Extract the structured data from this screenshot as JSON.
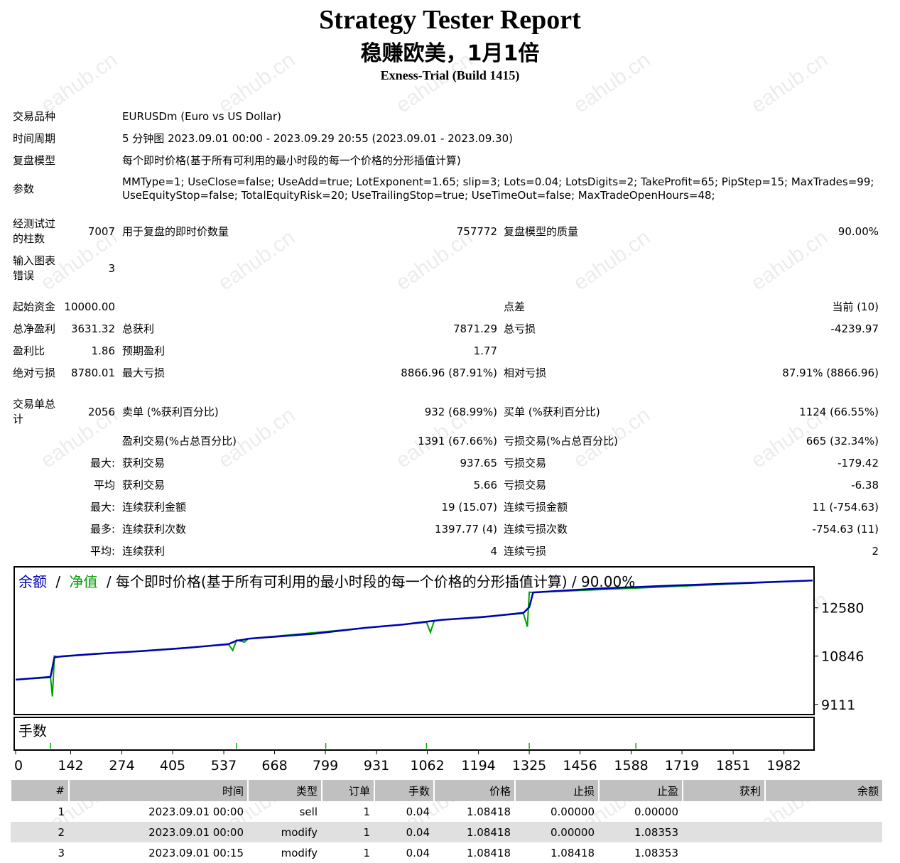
{
  "header": {
    "title": "Strategy Tester Report",
    "subtitle": "稳赚欧美，1月1倍",
    "server": "Exness-Trial (Build 1415)"
  },
  "watermark": "eahub.cn",
  "settings": {
    "symbol_label": "交易品种",
    "symbol_value": "EURUSDm (Euro vs US Dollar)",
    "period_label": "时间周期",
    "period_value": "5 分钟图 2023.09.01 00:00 - 2023.09.29 20:55 (2023.09.01 - 2023.09.30)",
    "model_label": "复盘模型",
    "model_value": "每个即时价格(基于所有可利用的最小时段的每一个价格的分形插值计算)",
    "params_label": "参数",
    "params_line1": "MMType=1; UseClose=false; UseAdd=true; LotExponent=1.65; slip=3; Lots=0.04; LotsDigits=2; TakeProfit=65; PipStep=15; MaxTrades=99;",
    "params_line2": "UseEquityStop=false; TotalEquityRisk=20; UseTrailingStop=true; UseTimeOut=false; MaxTradeOpenHours=48;"
  },
  "stats": {
    "bars_label_1": "经测试过",
    "bars_label_2": "的柱数",
    "bars_value": "7007",
    "ticks_label": "用于复盘的即时价数量",
    "ticks_value": "757772",
    "quality_label": "复盘模型的质量",
    "quality_value": "90.00%",
    "errors_label_1": "输入图表",
    "errors_label_2": "错误",
    "errors_value": "3",
    "deposit_label": "起始资金",
    "deposit_value": "10000.00",
    "spread_label": "点差",
    "spread_value": "当前 (10)",
    "net_profit_label": "总净盈利",
    "net_profit_value": "3631.32",
    "gross_profit_label": "总获利",
    "gross_profit_value": "7871.29",
    "gross_loss_label": "总亏损",
    "gross_loss_value": "-4239.97",
    "profit_factor_label": "盈利比",
    "profit_factor_value": "1.86",
    "expected_payoff_label": "预期盈利",
    "expected_payoff_value": "1.77",
    "abs_drawdown_label": "绝对亏损",
    "abs_drawdown_value": "8780.01",
    "max_drawdown_label": "最大亏损",
    "max_drawdown_value": "8866.96 (87.91%)",
    "rel_drawdown_label": "相对亏损",
    "rel_drawdown_value": "87.91% (8866.96)",
    "total_trades_label_1": "交易单总",
    "total_trades_label_2": "计",
    "total_trades_value": "2056",
    "short_label": "卖单 (%获利百分比)",
    "short_value": "932 (68.99%)",
    "long_label": "买单 (%获利百分比)",
    "long_value": "1124 (66.55%)",
    "profit_trades_label": "盈利交易(%占总百分比)",
    "profit_trades_value": "1391 (67.66%)",
    "loss_trades_label": "亏损交易(%占总百分比)",
    "loss_trades_value": "665 (32.34%)",
    "largest_prefix": "最大:",
    "largest_profit_label": "获利交易",
    "largest_profit_value": "937.65",
    "largest_loss_label": "亏损交易",
    "largest_loss_value": "-179.42",
    "average_prefix": "平均",
    "average_profit_label": "获利交易",
    "average_profit_value": "5.66",
    "average_loss_label": "亏损交易",
    "average_loss_value": "-6.38",
    "max_cons_prefix": "最大:",
    "max_cons_wins_label": "连续获利金额",
    "max_cons_wins_value": "19 (15.07)",
    "max_cons_losses_label": "连续亏损金额",
    "max_cons_losses_value": "11 (-754.63)",
    "maximal_prefix": "最多:",
    "maximal_cons_profit_label": "连续获利次数",
    "maximal_cons_profit_value": "1397.77 (4)",
    "maximal_cons_loss_label": "连续亏损次数",
    "maximal_cons_loss_value": "-754.63 (11)",
    "avg_cons_prefix": "平均:",
    "avg_cons_wins_label": "连续获利",
    "avg_cons_wins_value": "4",
    "avg_cons_losses_label": "连续亏损",
    "avg_cons_losses_value": "2"
  },
  "chart_data": {
    "type": "line",
    "legend_balance": "余额",
    "legend_equity": "净值",
    "legend_rest": "/ 每个即时价格(基于所有可利用的最小时段的每一个价格的分形插值计算) / 90.00%",
    "sep": "/",
    "lots_label": "手数",
    "y_ticks": [
      "12580",
      "10846",
      "9111"
    ],
    "ylim": [
      8800,
      14000
    ],
    "x_ticks": [
      "0",
      "142",
      "274",
      "405",
      "537",
      "668",
      "799",
      "931",
      "1062",
      "1194",
      "1325",
      "1456",
      "1588",
      "1719",
      "1851",
      "1982"
    ],
    "xlim": [
      0,
      2056
    ],
    "colors": {
      "balance": "#0000b4",
      "equity": "#00a000",
      "lots": "#00b400"
    },
    "series": [
      {
        "name": "余额",
        "x": [
          0,
          90,
          100,
          110,
          120,
          200,
          330,
          450,
          550,
          570,
          590,
          600,
          770,
          900,
          1000,
          1060,
          1100,
          1200,
          1230,
          1250,
          1310,
          1325,
          1335,
          1360,
          1500,
          1700,
          1900,
          2056
        ],
        "y": [
          10000,
          10100,
          10800,
          10820,
          10840,
          10920,
          11030,
          11150,
          11280,
          11400,
          11440,
          11470,
          11650,
          11860,
          11980,
          12080,
          12150,
          12240,
          12280,
          12310,
          12400,
          12600,
          13130,
          13150,
          13270,
          13380,
          13480,
          13560
        ]
      },
      {
        "name": "净值",
        "x": [
          0,
          90,
          95,
          100,
          110,
          550,
          560,
          570,
          590,
          600,
          1060,
          1070,
          1080,
          1310,
          1320,
          1325,
          1335,
          2056
        ],
        "y": [
          10000,
          10080,
          9400,
          10850,
          10820,
          11260,
          11050,
          11420,
          11350,
          11470,
          12060,
          11700,
          12120,
          12380,
          11900,
          13140,
          13130,
          13560
        ]
      }
    ],
    "lots_x": [
      90,
      570,
      800,
      1060,
      1325,
      1600
    ]
  },
  "deals_table": {
    "headers": [
      "#",
      "时间",
      "类型",
      "订单",
      "手数",
      "价格",
      "止损",
      "止盈",
      "获利",
      "余额"
    ],
    "rows": [
      [
        "1",
        "2023.09.01 00:00",
        "sell",
        "1",
        "0.04",
        "1.08418",
        "0.00000",
        "0.00000",
        "",
        ""
      ],
      [
        "2",
        "2023.09.01 00:00",
        "modify",
        "1",
        "0.04",
        "1.08418",
        "0.00000",
        "1.08353",
        "",
        ""
      ],
      [
        "3",
        "2023.09.01 00:15",
        "modify",
        "1",
        "0.04",
        "1.08418",
        "1.08418",
        "1.08353",
        "",
        ""
      ]
    ]
  }
}
